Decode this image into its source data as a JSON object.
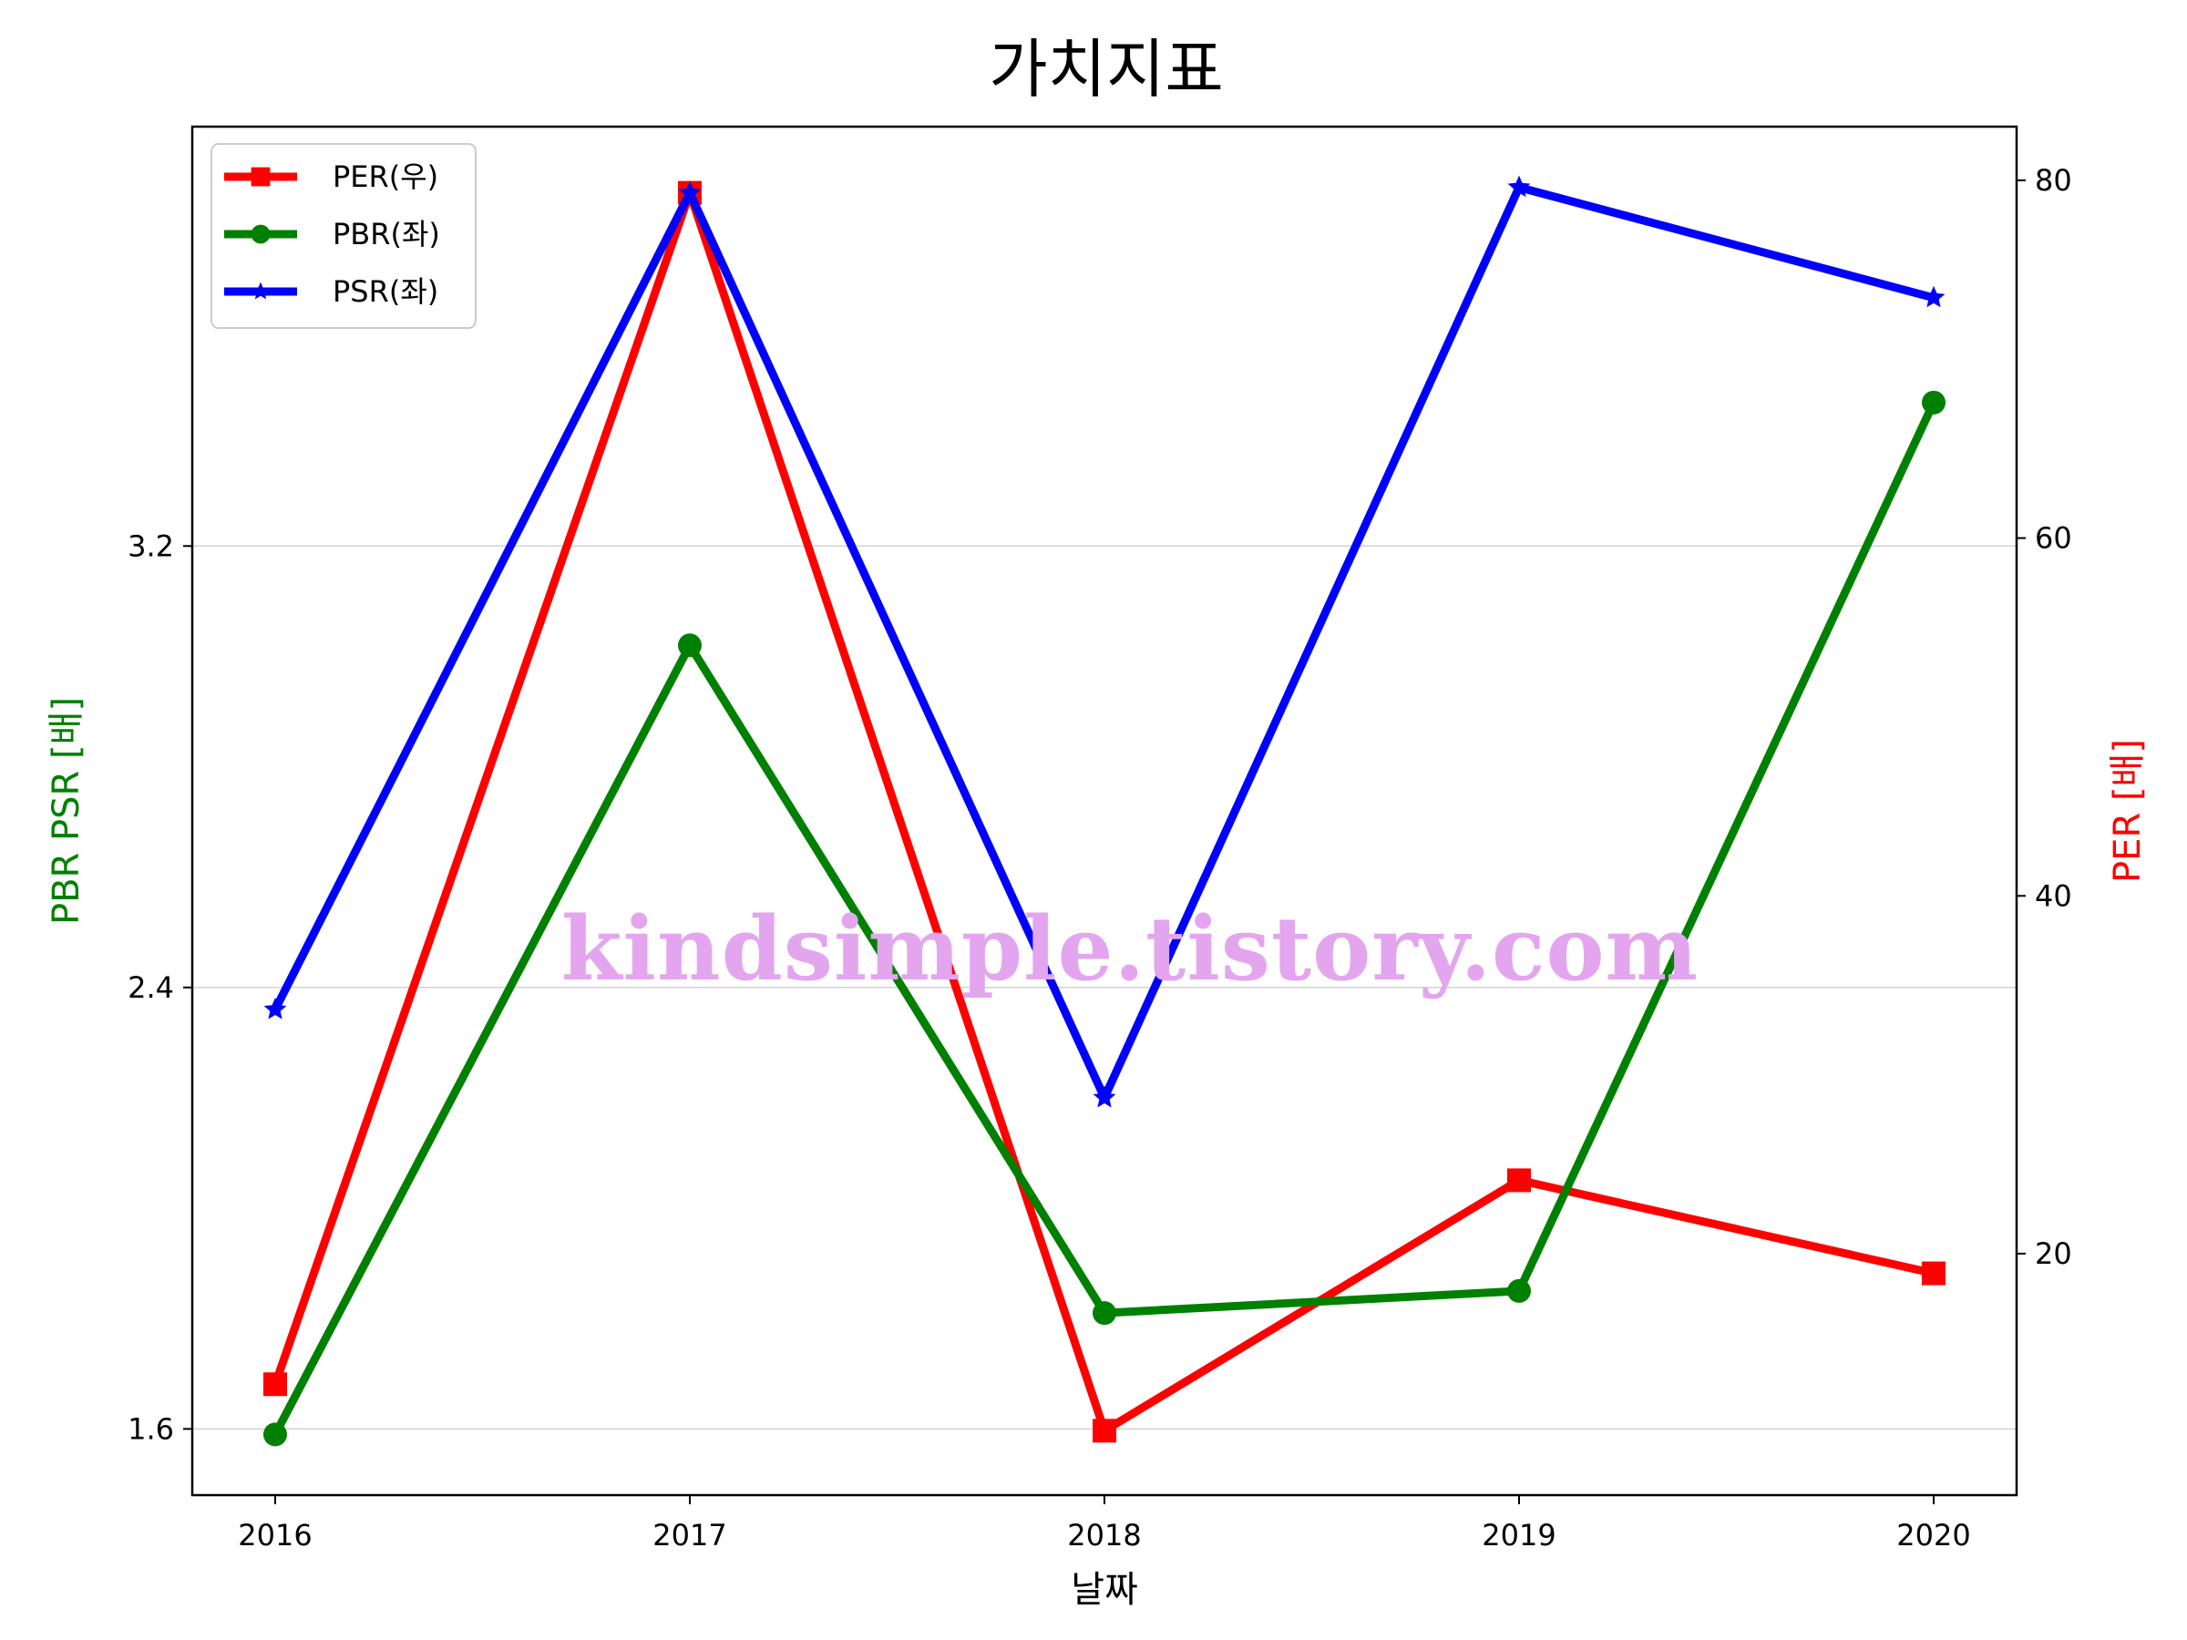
{
  "chart_data": {
    "type": "line",
    "title": "가치지표",
    "xlabel": "날짜",
    "ylabel_left": "PBR PSR [배]",
    "ylabel_right": "PER [배]",
    "categories": [
      "2016",
      "2017",
      "2018",
      "2019",
      "2020"
    ],
    "y_left": {
      "ylim": [
        1.48,
        3.96
      ],
      "ticks": [
        1.6,
        2.4,
        3.2
      ]
    },
    "y_right": {
      "ylim": [
        6.5,
        83
      ],
      "ticks": [
        20,
        40,
        60,
        80
      ]
    },
    "grid": "horizontal-left",
    "legend_position": "top-left",
    "series": [
      {
        "name": "PER(우)",
        "axis": "right",
        "color": "#ff0000",
        "marker": "square",
        "values": [
          12.7,
          79.3,
          10.1,
          24.1,
          18.9
        ]
      },
      {
        "name": "PBR(좌)",
        "axis": "left",
        "color": "#008000",
        "marker": "circle",
        "values": [
          1.59,
          3.02,
          1.81,
          1.85,
          3.46
        ]
      },
      {
        "name": "PSR(좌)",
        "axis": "left",
        "color": "#0000ff",
        "marker": "star",
        "values": [
          2.36,
          3.84,
          2.2,
          3.85,
          3.65
        ]
      }
    ],
    "watermark": "kindsimple.tistory.com"
  }
}
